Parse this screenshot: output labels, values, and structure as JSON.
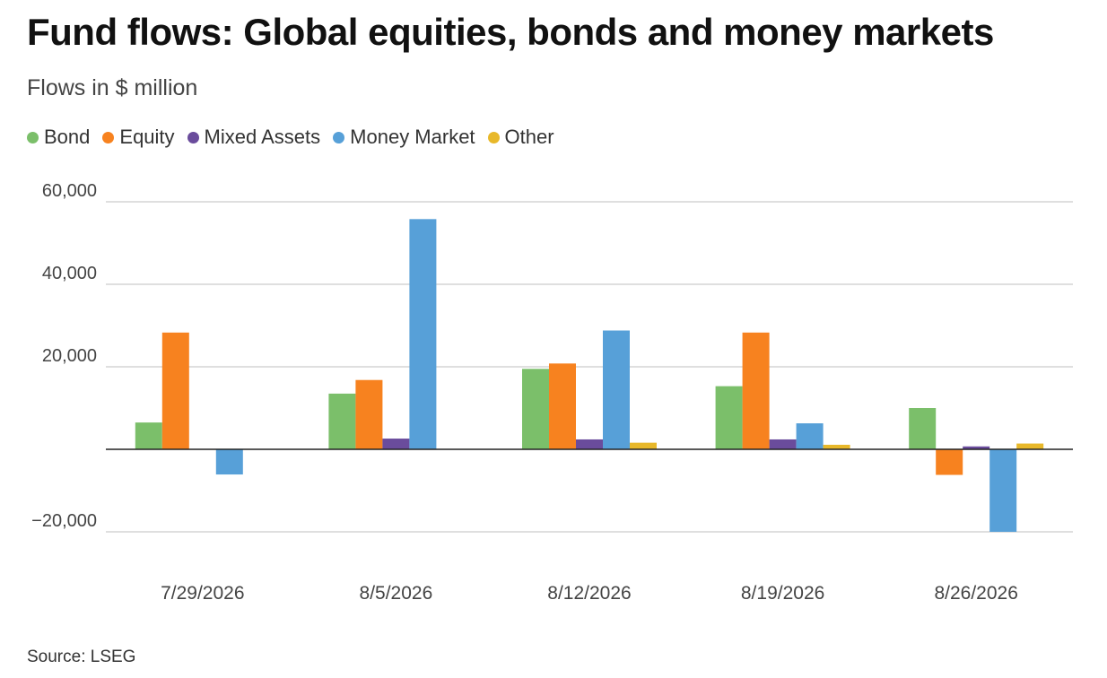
{
  "title": "Fund flows: Global equities, bonds and money markets",
  "subtitle": "Flows in $ million",
  "source": "Source: LSEG",
  "colors": {
    "Bond": "#7bbf6a",
    "Equity": "#f7821f",
    "Mixed Assets": "#6a4c9c",
    "Money Market": "#57a0d8",
    "Other": "#e8b82a",
    "grid": "#cccccc",
    "zero_line": "#222222"
  },
  "chart_data": {
    "type": "bar",
    "categories": [
      "7/29/2026",
      "8/5/2026",
      "8/12/2026",
      "8/19/2026",
      "8/26/2026"
    ],
    "series": [
      {
        "name": "Bond",
        "values": [
          6500,
          13500,
          19500,
          15300,
          10000
        ]
      },
      {
        "name": "Equity",
        "values": [
          28300,
          16800,
          20800,
          28300,
          -6200
        ]
      },
      {
        "name": "Mixed Assets",
        "values": [
          0,
          2600,
          2400,
          2400,
          700
        ]
      },
      {
        "name": "Money Market",
        "values": [
          -6100,
          55800,
          28800,
          6300,
          -20000
        ]
      },
      {
        "name": "Other",
        "values": [
          0,
          0,
          1600,
          1100,
          1400
        ]
      }
    ],
    "yticks": [
      -20000,
      0,
      20000,
      40000,
      60000
    ],
    "ytick_labels": [
      "−20,000",
      "",
      "20,000",
      "40,000",
      "60,000"
    ],
    "ylim": [
      -20000,
      60000
    ],
    "grid": true,
    "legend_position": "top-left"
  }
}
